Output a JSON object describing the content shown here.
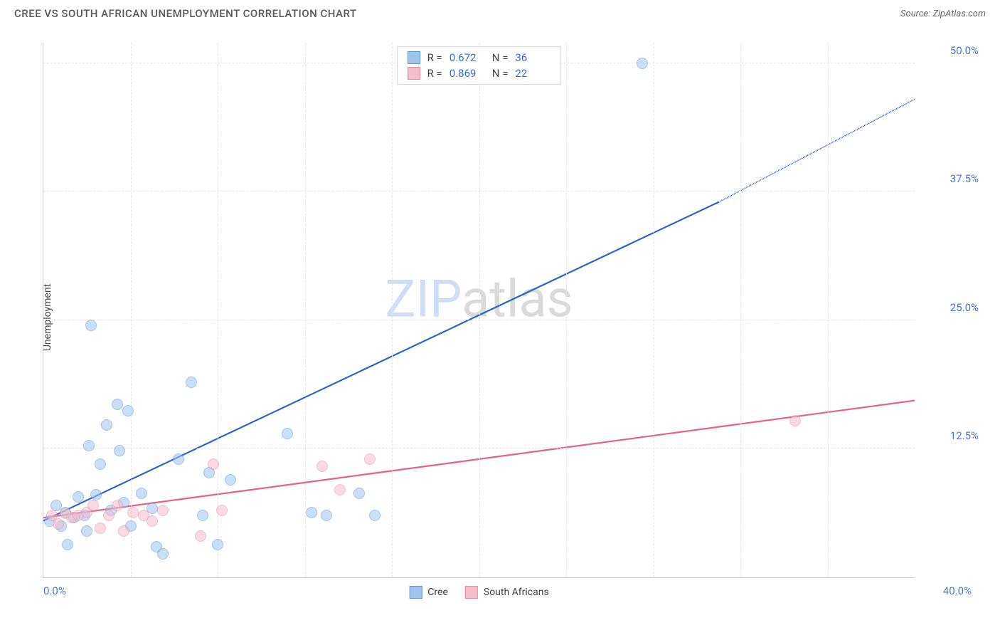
{
  "title": "CREE VS SOUTH AFRICAN UNEMPLOYMENT CORRELATION CHART",
  "source_label": "Source: ",
  "source_name": "ZipAtlas.com",
  "ylabel": "Unemployment",
  "watermark_a": "ZIP",
  "watermark_b": "atlas",
  "chart": {
    "type": "scatter",
    "xlim": [
      0,
      40
    ],
    "ylim": [
      0,
      52
    ],
    "x_tick_start": "0.0%",
    "x_tick_end": "40.0%",
    "y_ticks": [
      {
        "v": 12.5,
        "label": "12.5%"
      },
      {
        "v": 25.0,
        "label": "25.0%"
      },
      {
        "v": 37.5,
        "label": "37.5%"
      },
      {
        "v": 50.0,
        "label": "50.0%"
      }
    ],
    "x_minor_step": 4,
    "background": "#ffffff",
    "grid_color": "#e6e6e6",
    "axis_color": "#cccccc",
    "tick_label_color": "#4a78d6",
    "marker_radius": 8,
    "marker_opacity": 0.55,
    "series": [
      {
        "name": "Cree",
        "color_fill": "#9fc4ee",
        "color_stroke": "#5a94d6",
        "line_color": "#2e63c9",
        "R": "0.672",
        "N": "36",
        "trend": {
          "x0": 0,
          "y0": 5.5,
          "x1": 31,
          "y1": 36.5,
          "x1_dash": 40,
          "y1_dash": 46.5
        },
        "points": [
          {
            "x": 0.3,
            "y": 5.5
          },
          {
            "x": 0.6,
            "y": 7.0
          },
          {
            "x": 0.8,
            "y": 5.0
          },
          {
            "x": 1.0,
            "y": 6.3
          },
          {
            "x": 1.1,
            "y": 3.2
          },
          {
            "x": 1.4,
            "y": 5.8
          },
          {
            "x": 1.6,
            "y": 7.8
          },
          {
            "x": 1.9,
            "y": 6.0
          },
          {
            "x": 2.0,
            "y": 4.5
          },
          {
            "x": 2.1,
            "y": 12.8
          },
          {
            "x": 2.2,
            "y": 24.5
          },
          {
            "x": 2.4,
            "y": 8.0
          },
          {
            "x": 2.6,
            "y": 11.0
          },
          {
            "x": 2.9,
            "y": 14.8
          },
          {
            "x": 3.1,
            "y": 6.5
          },
          {
            "x": 3.4,
            "y": 16.8
          },
          {
            "x": 3.5,
            "y": 12.3
          },
          {
            "x": 3.7,
            "y": 7.3
          },
          {
            "x": 3.9,
            "y": 16.2
          },
          {
            "x": 4.0,
            "y": 5.0
          },
          {
            "x": 4.5,
            "y": 8.2
          },
          {
            "x": 5.0,
            "y": 6.7
          },
          {
            "x": 5.2,
            "y": 3.0
          },
          {
            "x": 5.5,
            "y": 2.3
          },
          {
            "x": 6.2,
            "y": 11.5
          },
          {
            "x": 6.8,
            "y": 19.0
          },
          {
            "x": 7.3,
            "y": 6.0
          },
          {
            "x": 7.6,
            "y": 10.2
          },
          {
            "x": 8.0,
            "y": 3.2
          },
          {
            "x": 8.6,
            "y": 9.5
          },
          {
            "x": 11.2,
            "y": 14.0
          },
          {
            "x": 12.3,
            "y": 6.3
          },
          {
            "x": 13.0,
            "y": 6.0
          },
          {
            "x": 14.5,
            "y": 8.2
          },
          {
            "x": 15.2,
            "y": 6.0
          },
          {
            "x": 27.5,
            "y": 50.0
          }
        ]
      },
      {
        "name": "South Africans",
        "color_fill": "#f3bdcb",
        "color_stroke": "#e88ba6",
        "line_color": "#e85f8a",
        "R": "0.869",
        "N": "22",
        "trend": {
          "x0": 0,
          "y0": 5.8,
          "x1": 40,
          "y1": 17.2,
          "x1_dash": 40,
          "y1_dash": 17.2
        },
        "points": [
          {
            "x": 0.4,
            "y": 6.0
          },
          {
            "x": 0.7,
            "y": 5.2
          },
          {
            "x": 1.0,
            "y": 6.2
          },
          {
            "x": 1.3,
            "y": 5.8
          },
          {
            "x": 1.6,
            "y": 6.0
          },
          {
            "x": 2.0,
            "y": 6.3
          },
          {
            "x": 2.3,
            "y": 7.0
          },
          {
            "x": 2.6,
            "y": 4.8
          },
          {
            "x": 3.0,
            "y": 6.0
          },
          {
            "x": 3.4,
            "y": 7.0
          },
          {
            "x": 3.7,
            "y": 4.5
          },
          {
            "x": 4.1,
            "y": 6.3
          },
          {
            "x": 4.6,
            "y": 6.0
          },
          {
            "x": 5.0,
            "y": 5.5
          },
          {
            "x": 5.5,
            "y": 6.5
          },
          {
            "x": 7.2,
            "y": 4.0
          },
          {
            "x": 7.8,
            "y": 11.0
          },
          {
            "x": 8.2,
            "y": 6.5
          },
          {
            "x": 12.8,
            "y": 10.8
          },
          {
            "x": 13.6,
            "y": 8.5
          },
          {
            "x": 15.0,
            "y": 11.5
          },
          {
            "x": 34.5,
            "y": 15.2
          }
        ]
      }
    ]
  },
  "legend_x": [
    {
      "label": "Cree",
      "fill": "#9fc4ee",
      "stroke": "#5a94d6"
    },
    {
      "label": "South Africans",
      "fill": "#f3bdcb",
      "stroke": "#e88ba6"
    }
  ]
}
